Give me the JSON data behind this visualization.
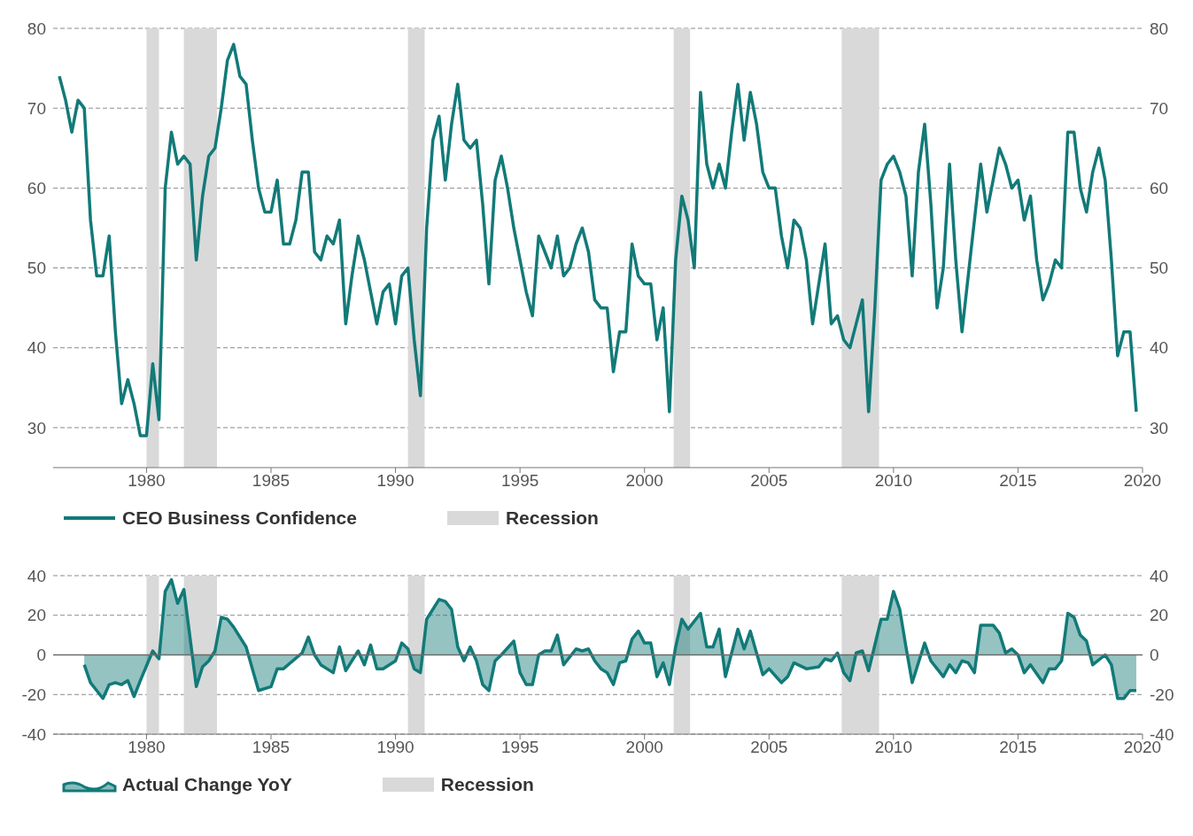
{
  "chart_data": [
    {
      "type": "line",
      "x": [
        1976.5,
        1976.75,
        1977,
        1977.25,
        1977.5,
        1977.75,
        1978,
        1978.25,
        1978.5,
        1978.75,
        1979,
        1979.25,
        1979.5,
        1979.75,
        1980,
        1980.25,
        1980.5,
        1980.75,
        1981,
        1981.25,
        1981.5,
        1981.75,
        1982,
        1982.25,
        1982.5,
        1982.75,
        1983,
        1983.25,
        1983.5,
        1983.75,
        1984,
        1984.25,
        1984.5,
        1984.75,
        1985,
        1985.25,
        1985.5,
        1985.75,
        1986,
        1986.25,
        1986.5,
        1986.75,
        1987,
        1987.25,
        1987.5,
        1987.75,
        1988,
        1988.25,
        1988.5,
        1988.75,
        1989,
        1989.25,
        1989.5,
        1989.75,
        1990,
        1990.25,
        1990.5,
        1990.75,
        1991,
        1991.25,
        1991.5,
        1991.75,
        1992,
        1992.25,
        1992.5,
        1992.75,
        1993,
        1993.25,
        1993.5,
        1993.75,
        1994,
        1994.25,
        1994.5,
        1994.75,
        1995,
        1995.25,
        1995.5,
        1995.75,
        1996,
        1996.25,
        1996.5,
        1996.75,
        1997,
        1997.25,
        1997.5,
        1997.75,
        1998,
        1998.25,
        1998.5,
        1998.75,
        1999,
        1999.25,
        1999.5,
        1999.75,
        2000,
        2000.25,
        2000.5,
        2000.75,
        2001,
        2001.25,
        2001.5,
        2001.75,
        2002,
        2002.25,
        2002.5,
        2002.75,
        2003,
        2003.25,
        2003.5,
        2003.75,
        2004,
        2004.25,
        2004.5,
        2004.75,
        2005,
        2005.25,
        2005.5,
        2005.75,
        2006,
        2006.25,
        2006.5,
        2006.75,
        2007,
        2007.25,
        2007.5,
        2007.75,
        2008,
        2008.25,
        2008.5,
        2008.75,
        2009,
        2009.25,
        2009.5,
        2009.75,
        2010,
        2010.25,
        2010.5,
        2010.75,
        2011,
        2011.25,
        2011.5,
        2011.75,
        2012,
        2012.25,
        2012.5,
        2012.75,
        2013,
        2013.25,
        2013.5,
        2013.75,
        2014,
        2014.25,
        2014.5,
        2014.75,
        2015,
        2015.25,
        2015.5,
        2015.75,
        2016,
        2016.25,
        2016.5,
        2016.75,
        2017,
        2017.25,
        2017.5,
        2017.75,
        2018,
        2018.25,
        2018.5,
        2018.75,
        2019,
        2019.25,
        2019.5,
        2019.75
      ],
      "series": [
        {
          "name": "CEO Business Confidence",
          "color": "#127a78",
          "values": [
            74,
            71,
            67,
            71,
            70,
            56,
            49,
            49,
            54,
            42,
            33,
            36,
            33,
            29,
            29,
            38,
            31,
            60,
            67,
            63,
            64,
            63,
            51,
            59,
            64,
            65,
            70,
            76,
            78,
            74,
            73,
            66,
            60,
            57,
            57,
            61,
            53,
            53,
            56,
            62,
            62,
            52,
            51,
            54,
            53,
            56,
            43,
            49,
            54,
            51,
            47,
            43,
            47,
            48,
            43,
            49,
            50,
            41,
            34,
            55,
            66,
            69,
            61,
            68,
            73,
            66,
            65,
            66,
            58,
            48,
            61,
            64,
            60,
            55,
            51,
            47,
            44,
            54,
            52,
            50,
            54,
            49,
            50,
            53,
            55,
            52,
            46,
            45,
            45,
            37,
            42,
            42,
            53,
            49,
            48,
            48,
            41,
            45,
            32,
            51,
            59,
            56,
            50,
            72,
            63,
            60,
            63,
            60,
            67,
            73,
            66,
            72,
            68,
            62,
            60,
            60,
            54,
            50,
            56,
            55,
            51,
            43,
            48,
            53,
            43,
            44,
            41,
            40,
            43,
            46,
            32,
            45,
            61,
            63,
            64,
            62,
            59,
            49,
            62,
            68,
            58,
            45,
            50,
            63,
            51,
            42,
            49,
            56,
            63,
            57,
            61,
            65,
            63,
            60,
            61,
            56,
            59,
            51,
            46,
            48,
            51,
            50,
            67,
            67,
            60,
            57,
            62,
            65,
            61,
            51,
            39,
            42,
            42,
            32
          ]
        }
      ],
      "xlim": [
        1976.25,
        2020
      ],
      "xticks": [
        1980,
        1985,
        1990,
        1995,
        2000,
        2005,
        2010,
        2015,
        2020
      ],
      "ylim": [
        25,
        80
      ],
      "yticks": [
        30,
        40,
        50,
        60,
        70,
        80
      ],
      "y2lim": [
        25,
        80
      ],
      "y2ticks": [
        30,
        40,
        50,
        60,
        70,
        80
      ],
      "bands": [
        {
          "axis": "x",
          "from": 1980,
          "to": 1980.5,
          "label": "Recession",
          "color": "#d9d9d9"
        },
        {
          "axis": "x",
          "from": 1981.5,
          "to": 1982.83,
          "color": "#d9d9d9"
        },
        {
          "axis": "x",
          "from": 1990.5,
          "to": 1991.17,
          "color": "#d9d9d9"
        },
        {
          "axis": "x",
          "from": 2001.17,
          "to": 2001.83,
          "color": "#d9d9d9"
        },
        {
          "axis": "x",
          "from": 2007.92,
          "to": 2009.42,
          "color": "#d9d9d9"
        }
      ],
      "grid": "y",
      "legend": "bottom"
    },
    {
      "type": "area",
      "series": [
        {
          "name": "Actual Change YoY",
          "color": "#127a78",
          "x": [
            1977.5,
            1977.75,
            1978,
            1978.25,
            1978.5,
            1978.75,
            1979,
            1979.25,
            1979.5,
            1979.75,
            1980.25,
            1980.5,
            1980.75,
            1981,
            1981.25,
            1981.5,
            1982,
            1982.25,
            1982.5,
            1982.75,
            1983,
            1983.25,
            1983.5,
            1984,
            1984.5,
            1985,
            1985.25,
            1985.5,
            1986.25,
            1986.5,
            1986.75,
            1987,
            1987.5,
            1987.75,
            1988,
            1988.5,
            1988.75,
            1989,
            1989.25,
            1989.5,
            1990,
            1990.25,
            1990.5,
            1990.75,
            1991,
            1991.25,
            1991.75,
            1992,
            1992.25,
            1992.5,
            1992.75,
            1993,
            1993.25,
            1993.5,
            1993.75,
            1994,
            1994.25,
            1994.75,
            1995,
            1995.25,
            1995.5,
            1995.75,
            1996,
            1996.25,
            1996.5,
            1996.75,
            1997,
            1997.25,
            1997.5,
            1997.75,
            1998,
            1998.25,
            1998.5,
            1998.75,
            1999,
            1999.25,
            1999.5,
            1999.75,
            2000,
            2000.25,
            2000.5,
            2000.75,
            2001,
            2001.25,
            2001.5,
            2001.75,
            2002.25,
            2002.5,
            2002.75,
            2003,
            2003.25,
            2003.75,
            2004,
            2004.25,
            2004.75,
            2005,
            2005.5,
            2005.75,
            2006,
            2006.5,
            2007,
            2007.25,
            2007.5,
            2007.75,
            2008,
            2008.25,
            2008.5,
            2008.75,
            2009,
            2009.5,
            2009.75,
            2010,
            2010.25,
            2010.5,
            2010.75,
            2011.25,
            2011.5,
            2011.75,
            2012,
            2012.25,
            2012.5,
            2012.75,
            2013,
            2013.25,
            2013.5,
            2014,
            2014.25,
            2014.5,
            2014.75,
            2015,
            2015.25,
            2015.5,
            2016,
            2016.25,
            2016.5,
            2016.75,
            2017,
            2017.25,
            2017.5,
            2017.75,
            2018,
            2018.5,
            2018.75,
            2019,
            2019.25,
            2019.5,
            2019.75
          ],
          "values": [
            -5,
            -14,
            -18,
            -22,
            -15,
            -14,
            -15,
            -13,
            -21,
            -13,
            2,
            -2,
            32,
            38,
            26,
            33,
            -16,
            -6,
            -3,
            2,
            19,
            18,
            14,
            4,
            -18,
            -16,
            -7,
            -7,
            1,
            9,
            0,
            -5,
            -9,
            4,
            -8,
            2,
            -5,
            5,
            -7,
            -7,
            -3,
            6,
            3,
            -7,
            -9,
            18,
            28,
            27,
            23,
            4,
            -3,
            4,
            -3,
            -15,
            -18,
            -3,
            0,
            7,
            -9,
            -15,
            -15,
            0,
            2,
            2,
            10,
            -5,
            -1,
            3,
            2,
            3,
            -3,
            -7,
            -9,
            -15,
            -4,
            -3,
            8,
            12,
            6,
            6,
            -11,
            -4,
            -15,
            4,
            18,
            13,
            21,
            4,
            4,
            13,
            -11,
            13,
            3,
            12,
            -10,
            -7,
            -14,
            -11,
            -4,
            -7,
            -6,
            -2,
            -3,
            1,
            -9,
            -13,
            1,
            2,
            -8,
            18,
            18,
            32,
            23,
            4,
            -14,
            6,
            -3,
            -7,
            -11,
            -5,
            -9,
            -3,
            -4,
            -9,
            15,
            15,
            11,
            1,
            3,
            0,
            -9,
            -5,
            -14,
            -7,
            -7,
            -3,
            21,
            19,
            10,
            7,
            -5,
            0,
            -5,
            -22,
            -22,
            -18,
            -18
          ]
        }
      ],
      "xlim": [
        1976.25,
        2020
      ],
      "xticks": [
        1980,
        1985,
        1990,
        1995,
        2000,
        2005,
        2010,
        2015,
        2020
      ],
      "ylim": [
        -40,
        40
      ],
      "yticks": [
        -40,
        -20,
        0,
        20,
        40
      ],
      "y2lim": [
        -40,
        40
      ],
      "y2ticks": [
        -40,
        -20,
        0,
        20,
        40
      ],
      "bands": [
        {
          "axis": "x",
          "from": 1980,
          "to": 1980.5,
          "label": "Recession",
          "color": "#d9d9d9"
        },
        {
          "axis": "x",
          "from": 1981.5,
          "to": 1982.83,
          "color": "#d9d9d9"
        },
        {
          "axis": "x",
          "from": 1990.5,
          "to": 1991.17,
          "color": "#d9d9d9"
        },
        {
          "axis": "x",
          "from": 2001.17,
          "to": 2001.83,
          "color": "#d9d9d9"
        },
        {
          "axis": "x",
          "from": 2007.92,
          "to": 2009.42,
          "color": "#d9d9d9"
        }
      ],
      "ref_lines": [
        {
          "axis": "y",
          "value": 0,
          "color": "#6b6b6b",
          "line_style": "solid"
        }
      ],
      "grid": "y",
      "legend": "bottom"
    }
  ]
}
